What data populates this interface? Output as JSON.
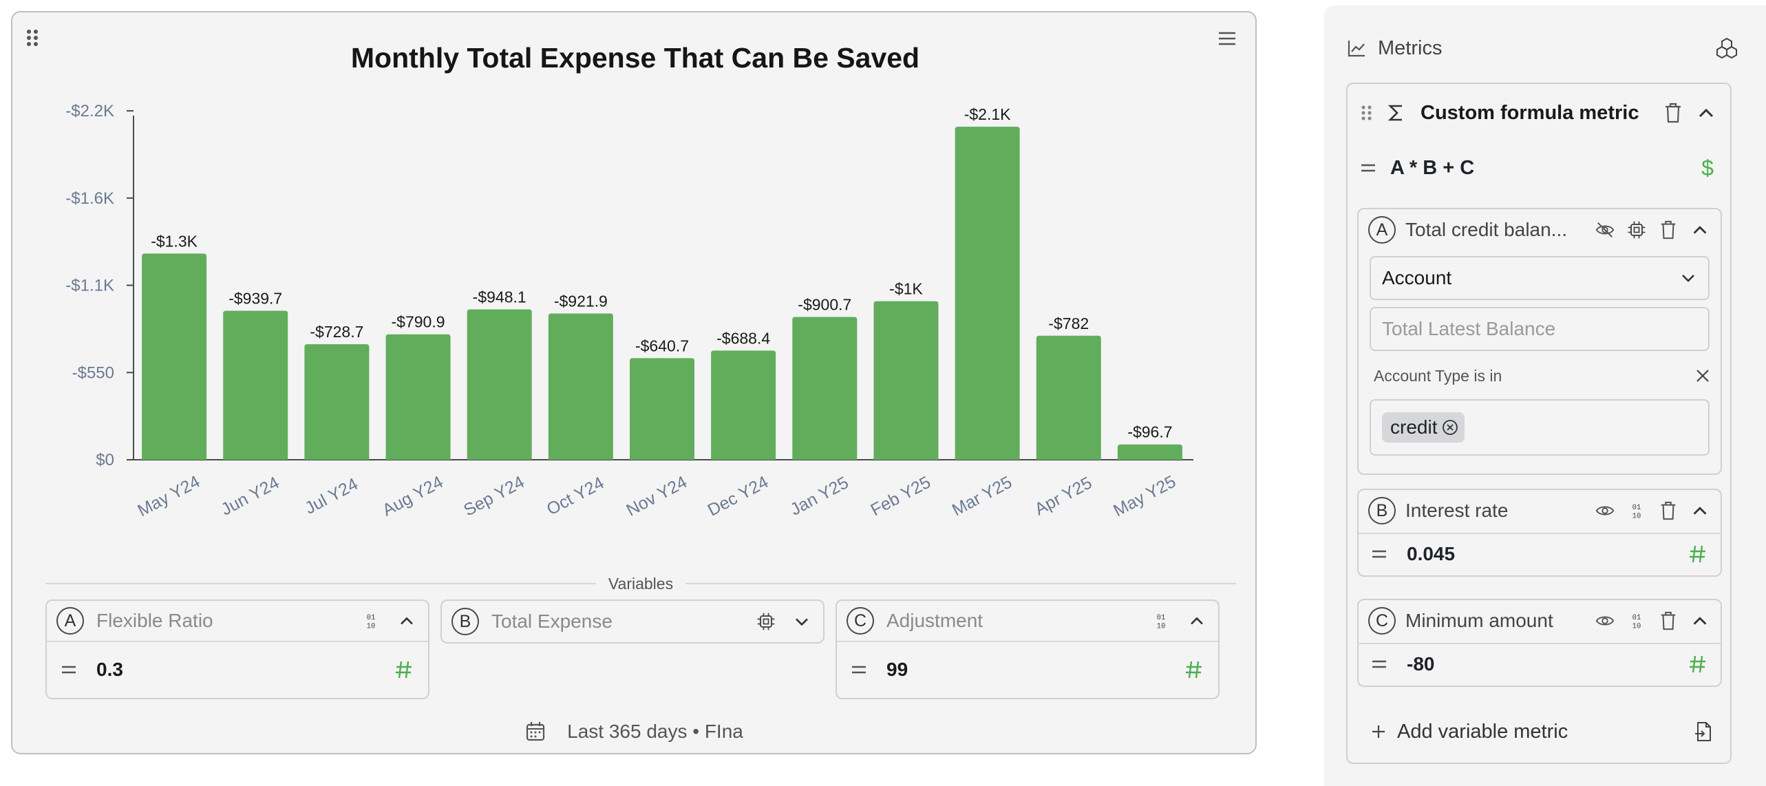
{
  "chart_card": {
    "variables_label": "Variables",
    "footer_text": "Last 365 days • FIna",
    "variables": [
      {
        "letter": "A",
        "name": "Flexible Ratio",
        "value": "0.3",
        "expanded": true
      },
      {
        "letter": "B",
        "name": "Total Expense",
        "value": "",
        "expanded": false
      },
      {
        "letter": "C",
        "name": "Adjustment",
        "value": "99",
        "expanded": true
      }
    ]
  },
  "chart_data": {
    "type": "bar",
    "title": "Monthly Total Expense That Can Be Saved",
    "categories": [
      "May Y24",
      "Jun Y24",
      "Jul Y24",
      "Aug Y24",
      "Sep Y24",
      "Oct Y24",
      "Nov Y24",
      "Dec Y24",
      "Jan Y25",
      "Feb Y25",
      "Mar Y25",
      "Apr Y25",
      "May Y25"
    ],
    "values": [
      -1300,
      -939.7,
      -728.7,
      -790.9,
      -948.1,
      -921.9,
      -640.7,
      -688.4,
      -900.7,
      -1000,
      -2100,
      -782,
      -96.7
    ],
    "data_labels": [
      "-$1.3K",
      "-$939.7",
      "-$728.7",
      "-$790.9",
      "-$948.1",
      "-$921.9",
      "-$640.7",
      "-$688.4",
      "-$900.7",
      "-$1K",
      "-$2.1K",
      "-$782",
      "-$96.7"
    ],
    "y_ticks": [
      "$0",
      "-$550",
      "-$1.1K",
      "-$1.6K",
      "-$2.2K"
    ],
    "y_tick_values": [
      0,
      -550,
      -1100,
      -1650,
      -2200
    ],
    "ylim": [
      0,
      -2300
    ],
    "xlabel": "",
    "ylabel": "",
    "grid": false,
    "bar_color": "#62ad5c"
  },
  "panel": {
    "title": "Metrics",
    "formula_metric": {
      "name": "Custom formula metric",
      "expression": "A * B + C"
    },
    "metric_a": {
      "letter": "A",
      "name": "Total credit balan...",
      "select_value": "Account",
      "placeholder": "Total Latest Balance",
      "filter_label": "Account Type is in",
      "chip": "credit"
    },
    "metric_b": {
      "letter": "B",
      "name": "Interest rate",
      "value": "0.045"
    },
    "metric_c": {
      "letter": "C",
      "name": "Minimum amount",
      "value": "-80"
    },
    "add_label": "Add variable metric"
  },
  "colors": {
    "accent_green": "#4caf50",
    "bar": "#62ad5c"
  }
}
